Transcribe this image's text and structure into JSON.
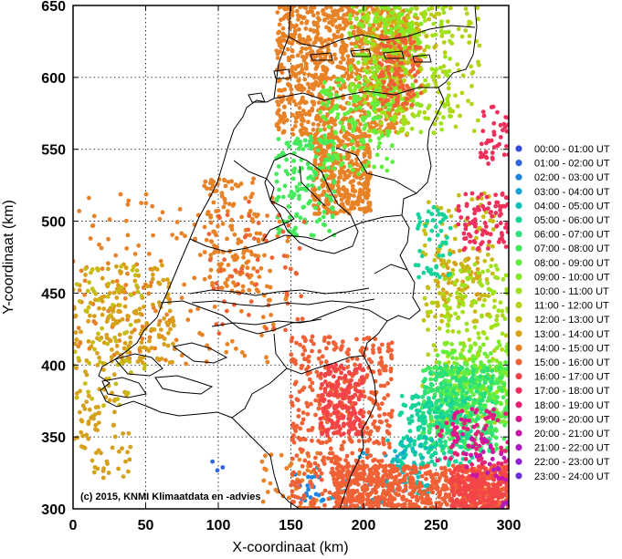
{
  "chart_data": {
    "type": "scatter",
    "title": "",
    "xlabel": "X-coordinaat (km)",
    "ylabel": "Y-coordinaat (km)",
    "xlim": [
      0,
      300
    ],
    "ylim": [
      300,
      650
    ],
    "x_ticks": [
      "0",
      "50",
      "100",
      "150",
      "200",
      "250",
      "300"
    ],
    "y_ticks": [
      "300",
      "350",
      "400",
      "450",
      "500",
      "550",
      "600",
      "650"
    ],
    "grid": true,
    "legend_position": "right",
    "copyright": "(c) 2015, KNMI Klimaatdata en -advies",
    "legend": [
      {
        "label": "00:00 - 01:00 UT",
        "color": "#3b49e0"
      },
      {
        "label": "01:00 - 02:00 UT",
        "color": "#2e67e0"
      },
      {
        "label": "02:00 - 03:00 UT",
        "color": "#1f86e0"
      },
      {
        "label": "03:00 - 04:00 UT",
        "color": "#12a4d6"
      },
      {
        "label": "04:00 - 05:00 UT",
        "color": "#0fbdb8"
      },
      {
        "label": "05:00 - 06:00 UT",
        "color": "#15d39a"
      },
      {
        "label": "06:00 - 07:00 UT",
        "color": "#2be07a"
      },
      {
        "label": "07:00 - 08:00 UT",
        "color": "#45ea5c"
      },
      {
        "label": "08:00 - 09:00 UT",
        "color": "#62ee3f"
      },
      {
        "label": "09:00 - 10:00 UT",
        "color": "#82ea28"
      },
      {
        "label": "10:00 - 11:00 UT",
        "color": "#9fe21a"
      },
      {
        "label": "11:00 - 12:00 UT",
        "color": "#b6d214"
      },
      {
        "label": "12:00 - 13:00 UT",
        "color": "#c7bc12"
      },
      {
        "label": "13:00 - 14:00 UT",
        "color": "#d7a01a"
      },
      {
        "label": "14:00 - 15:00 UT",
        "color": "#e88226"
      },
      {
        "label": "15:00 - 16:00 UT",
        "color": "#f06236"
      },
      {
        "label": "16:00 - 17:00 UT",
        "color": "#f34448"
      },
      {
        "label": "17:00 - 18:00 UT",
        "color": "#f0305c"
      },
      {
        "label": "18:00 - 19:00 UT",
        "color": "#e82074"
      },
      {
        "label": "19:00 - 20:00 UT",
        "color": "#dc168e"
      },
      {
        "label": "20:00 - 21:00 UT",
        "color": "#c814a8"
      },
      {
        "label": "21:00 - 22:00 UT",
        "color": "#ae1ac0"
      },
      {
        "label": "22:00 - 23:00 UT",
        "color": "#8f22d2"
      },
      {
        "label": "23:00 - 24:00 UT",
        "color": "#6c2cde"
      }
    ],
    "clusters": [
      {
        "hour": 14,
        "x": [
          140,
          230
        ],
        "y": [
          560,
          650
        ],
        "count": 900
      },
      {
        "hour": 14,
        "x": [
          165,
          205
        ],
        "y": [
          505,
          560
        ],
        "count": 380
      },
      {
        "hour": 14,
        "x": [
          90,
          130
        ],
        "y": [
          450,
          530
        ],
        "count": 120
      },
      {
        "hour": 14,
        "x": [
          0,
          150
        ],
        "y": [
          400,
          520
        ],
        "count": 180
      },
      {
        "hour": 14,
        "x": [
          130,
          170
        ],
        "y": [
          300,
          340
        ],
        "count": 40
      },
      {
        "hour": 13,
        "x": [
          0,
          40
        ],
        "y": [
          320,
          470
        ],
        "count": 130
      },
      {
        "hour": 13,
        "x": [
          20,
          70
        ],
        "y": [
          400,
          470
        ],
        "count": 120
      },
      {
        "hour": 13,
        "x": [
          200,
          240
        ],
        "y": [
          600,
          650
        ],
        "count": 90
      },
      {
        "hour": 13,
        "x": [
          250,
          280
        ],
        "y": [
          440,
          480
        ],
        "count": 60
      },
      {
        "hour": 12,
        "x": [
          0,
          50
        ],
        "y": [
          370,
          470
        ],
        "count": 70
      },
      {
        "hour": 12,
        "x": [
          240,
          290
        ],
        "y": [
          430,
          520
        ],
        "count": 100
      },
      {
        "hour": 12,
        "x": [
          200,
          250
        ],
        "y": [
          580,
          650
        ],
        "count": 60
      },
      {
        "hour": 11,
        "x": [
          220,
          280
        ],
        "y": [
          560,
          650
        ],
        "count": 120
      },
      {
        "hour": 11,
        "x": [
          240,
          300
        ],
        "y": [
          360,
          450
        ],
        "count": 80
      },
      {
        "hour": 10,
        "x": [
          200,
          260
        ],
        "y": [
          560,
          650
        ],
        "count": 180
      },
      {
        "hour": 10,
        "x": [
          255,
          300
        ],
        "y": [
          380,
          470
        ],
        "count": 120
      },
      {
        "hour": 9,
        "x": [
          190,
          240
        ],
        "y": [
          580,
          650
        ],
        "count": 160
      },
      {
        "hour": 9,
        "x": [
          255,
          300
        ],
        "y": [
          360,
          420
        ],
        "count": 110
      },
      {
        "hour": 8,
        "x": [
          170,
          220
        ],
        "y": [
          530,
          600
        ],
        "count": 140
      },
      {
        "hour": 8,
        "x": [
          250,
          300
        ],
        "y": [
          360,
          410
        ],
        "count": 160
      },
      {
        "hour": 7,
        "x": [
          140,
          180
        ],
        "y": [
          490,
          560
        ],
        "count": 140
      },
      {
        "hour": 7,
        "x": [
          240,
          300
        ],
        "y": [
          340,
          400
        ],
        "count": 220
      },
      {
        "hour": 6,
        "x": [
          240,
          290
        ],
        "y": [
          340,
          400
        ],
        "count": 200
      },
      {
        "hour": 5,
        "x": [
          225,
          275
        ],
        "y": [
          330,
          380
        ],
        "count": 140
      },
      {
        "hour": 5,
        "x": [
          235,
          260
        ],
        "y": [
          460,
          510
        ],
        "count": 50
      },
      {
        "hour": 4,
        "x": [
          215,
          250
        ],
        "y": [
          310,
          350
        ],
        "count": 60
      },
      {
        "hour": 3,
        "x": [
          165,
          230
        ],
        "y": [
          300,
          340
        ],
        "count": 30
      },
      {
        "hour": 2,
        "x": [
          150,
          175
        ],
        "y": [
          305,
          325
        ],
        "count": 18
      },
      {
        "hour": 1,
        "x": [
          95,
          105
        ],
        "y": [
          325,
          333
        ],
        "count": 3
      },
      {
        "hour": 15,
        "x": [
          150,
          220
        ],
        "y": [
          300,
          420
        ],
        "count": 500
      },
      {
        "hour": 15,
        "x": [
          180,
          300
        ],
        "y": [
          300,
          330
        ],
        "count": 700
      },
      {
        "hour": 15,
        "x": [
          210,
          240
        ],
        "y": [
          580,
          630
        ],
        "count": 120
      },
      {
        "hour": 15,
        "x": [
          90,
          160
        ],
        "y": [
          420,
          520
        ],
        "count": 60
      },
      {
        "hour": 16,
        "x": [
          170,
          200
        ],
        "y": [
          350,
          400
        ],
        "count": 200
      },
      {
        "hour": 16,
        "x": [
          260,
          300
        ],
        "y": [
          300,
          330
        ],
        "count": 220
      },
      {
        "hour": 17,
        "x": [
          265,
          300
        ],
        "y": [
          480,
          520
        ],
        "count": 90
      },
      {
        "hour": 17,
        "x": [
          280,
          300
        ],
        "y": [
          540,
          580
        ],
        "count": 40
      },
      {
        "hour": 18,
        "x": [
          250,
          300
        ],
        "y": [
          330,
          370
        ],
        "count": 60
      },
      {
        "hour": 19,
        "x": [
          260,
          290
        ],
        "y": [
          340,
          370
        ],
        "count": 30
      },
      {
        "hour": 20,
        "x": [
          270,
          300
        ],
        "y": [
          320,
          350
        ],
        "count": 25
      },
      {
        "hour": 21,
        "x": [
          285,
          300
        ],
        "y": [
          300,
          340
        ],
        "count": 10
      }
    ]
  }
}
